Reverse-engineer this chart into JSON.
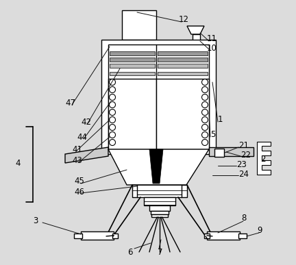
{
  "bg_color": "#dcdcdc",
  "line_color": "#000000",
  "lw": 1.0,
  "fig_w": 4.32,
  "fig_h": 3.87,
  "dpi": 100
}
